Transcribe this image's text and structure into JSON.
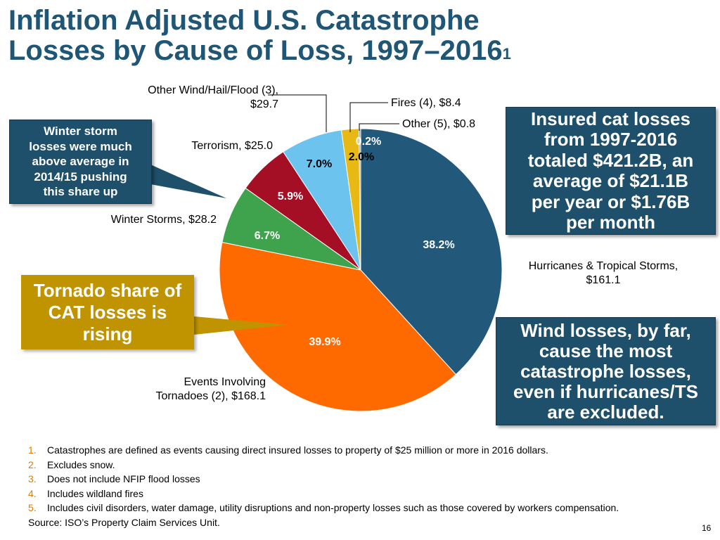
{
  "slide": {
    "title_line1": "Inflation Adjusted U.S. Catastrophe",
    "title_line2": "Losses by Cause of Loss, 1997–2016",
    "title_sup": "1",
    "page_number": "16"
  },
  "callouts": {
    "winter": [
      "Winter storm",
      "losses were much",
      "above average in",
      "2014/15 pushing",
      "this share up"
    ],
    "tornado": [
      "Tornado share of",
      "CAT losses is",
      "rising"
    ],
    "insured": [
      "Insured cat losses",
      "from 1997-2016",
      "totaled $421.2B, an",
      "average of $21.1B",
      "per year or $1.76B",
      "per month"
    ],
    "wind": [
      "Wind losses, by far,",
      "cause the most",
      "catastrophe losses,",
      "even if hurricanes/TS",
      "are excluded."
    ]
  },
  "footnotes": [
    {
      "num": "1.",
      "text": "Catastrophes are defined as events causing direct insured losses to property of $25 million or more in 2016 dollars."
    },
    {
      "num": "2.",
      "text": "Excludes snow."
    },
    {
      "num": "3.",
      "text": "Does not include NFIP flood losses"
    },
    {
      "num": "4.",
      "text": "Includes wildland fires"
    },
    {
      "num": "5.",
      "text": "Includes civil disorders, water damage, utility disruptions and non-property losses such as those covered by workers compensation."
    }
  ],
  "source": "Source: ISO’s Property Claim Services Unit.",
  "chart_data": {
    "type": "pie",
    "title": "Inflation Adjusted U.S. Catastrophe Losses by Cause of Loss, 1997–2016",
    "units": "$ billions",
    "slices": [
      {
        "name": "Hurricanes & Tropical Storms",
        "value": 161.1,
        "percent_label": "38.2%",
        "color": "#22587A",
        "label_lines": [
          "Hurricanes & Tropical Storms,",
          "$161.1"
        ],
        "pct_color": "#FFFFFF"
      },
      {
        "name": "Events Involving Tornadoes (2)",
        "value": 168.1,
        "percent_label": "39.9%",
        "color": "#FF6A00",
        "label_lines": [
          "Events Involving",
          "Tornadoes (2), $168.1"
        ],
        "pct_color": "#FFFFFF"
      },
      {
        "name": "Winter Storms",
        "value": 28.2,
        "percent_label": "6.7%",
        "color": "#3FA34D",
        "label_lines": [
          "Winter Storms, $28.2"
        ],
        "pct_color": "#FFFFFF"
      },
      {
        "name": "Terrorism",
        "value": 25.0,
        "percent_label": "5.9%",
        "color": "#A50F25",
        "label_lines": [
          "Terrorism, $25.0"
        ],
        "pct_color": "#FFFFFF"
      },
      {
        "name": "Other Wind/Hail/Flood (3)",
        "value": 29.7,
        "percent_label": "7.0%",
        "color": "#6CC4EE",
        "label_lines": [
          "Other Wind/Hail/Flood (3),",
          "$29.7"
        ],
        "pct_color": "#000000"
      },
      {
        "name": "Fires (4)",
        "value": 8.4,
        "percent_label": "2.0%",
        "color": "#E8B914",
        "label_lines": [
          "Fires (4), $8.4"
        ],
        "pct_color": "#000000"
      },
      {
        "name": "Other (5)",
        "value": 0.8,
        "percent_label": "0.2%",
        "color": "#8A9AA6",
        "label_lines": [
          "Other (5), $0.8"
        ],
        "pct_color": "#FFFFFF"
      }
    ]
  }
}
